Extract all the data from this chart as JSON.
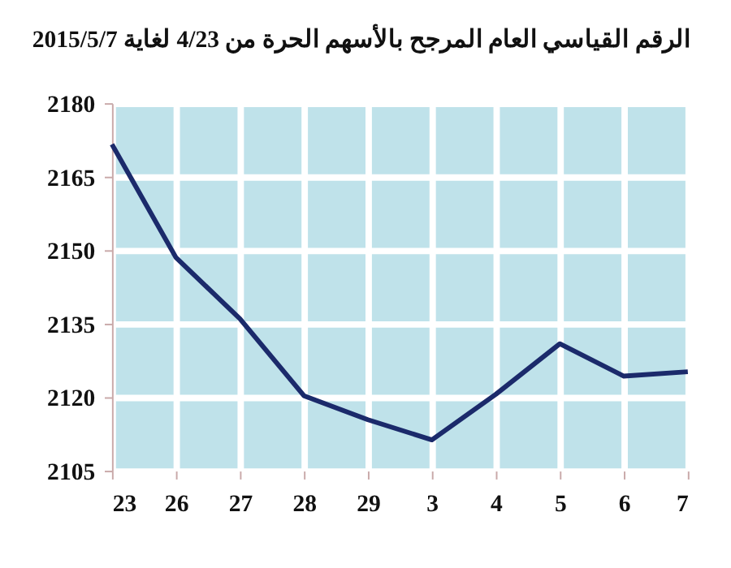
{
  "chart_data": {
    "type": "line",
    "title": "الرقم القياسي العام المرجح بالأسهم الحرة  من 4/23 لغاية 2015/5/7",
    "categories": [
      "23",
      "26",
      "27",
      "28",
      "29",
      "3",
      "4",
      "5",
      "6",
      "7"
    ],
    "series": [
      {
        "color": "#1b2a6b",
        "values": [
          2171.6,
          2148.5,
          2136,
          2120.3,
          2115.4,
          2111.3,
          2120.6,
          2130.9,
          2124.3,
          2125.2
        ]
      }
    ],
    "ylim": [
      2105,
      2180
    ],
    "yticks": [
      2105,
      2120,
      2135,
      2150,
      2165,
      2180
    ],
    "grid": true,
    "legend": false,
    "marker": "none",
    "line_style": "solid"
  }
}
